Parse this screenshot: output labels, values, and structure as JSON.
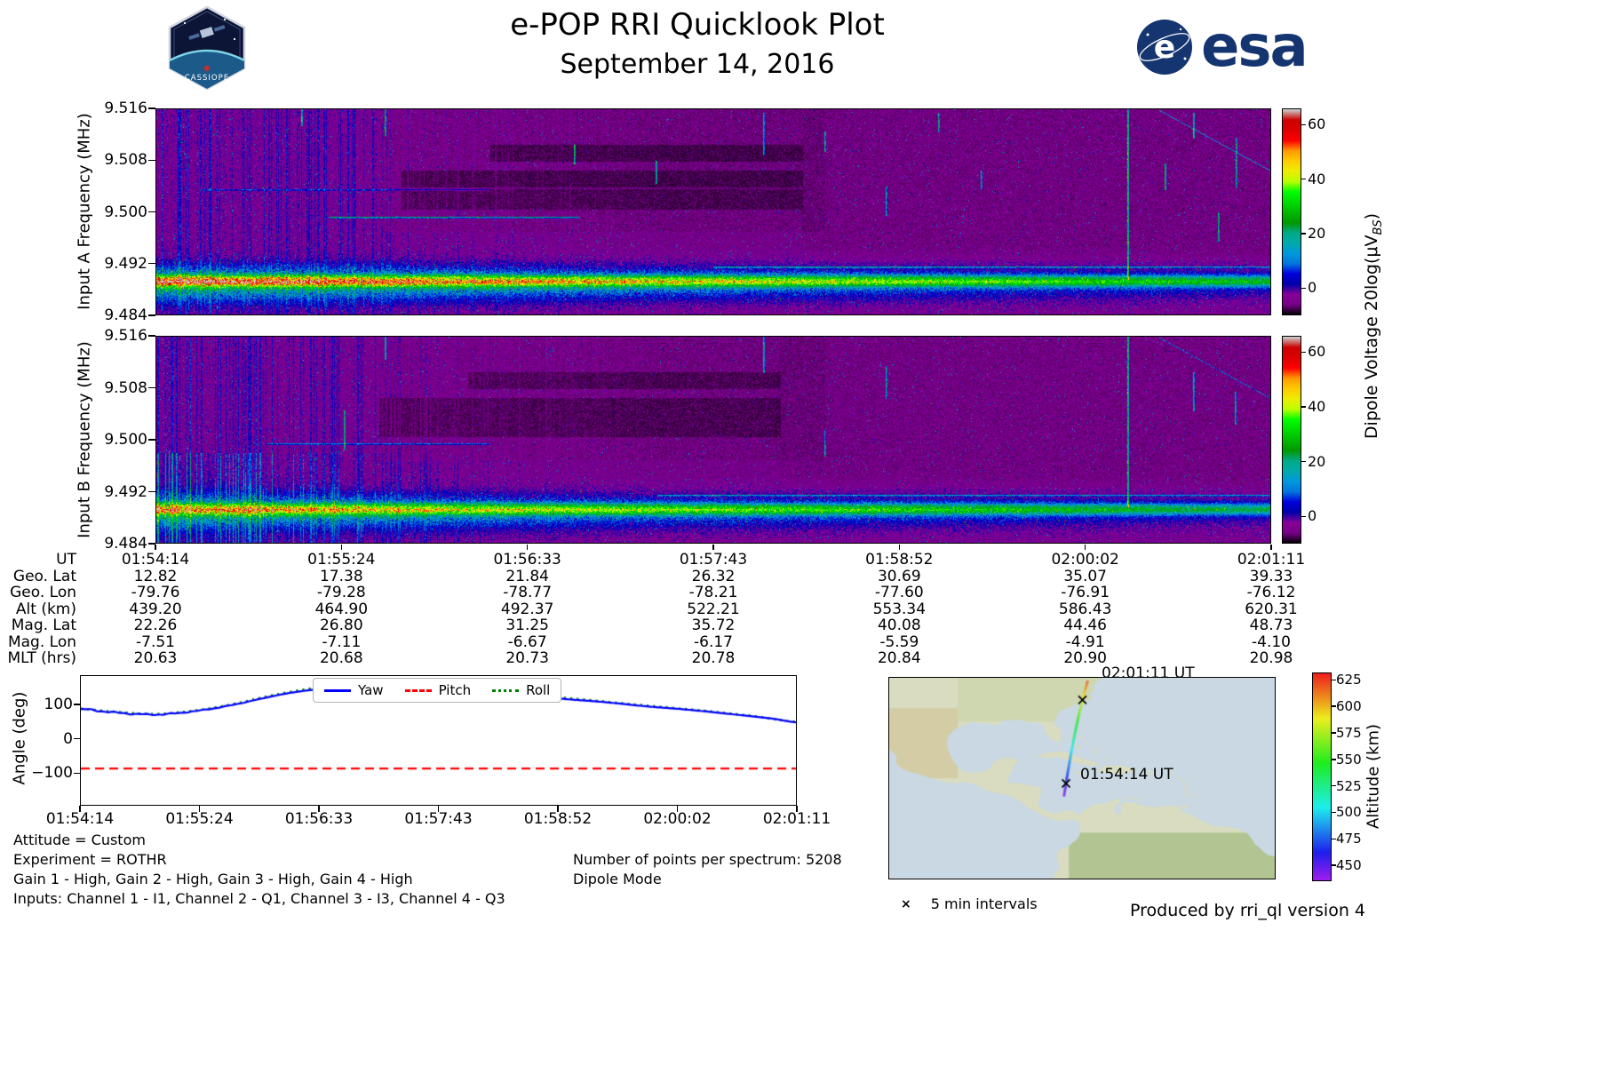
{
  "header": {
    "title": "e-POP RRI Quicklook Plot",
    "date": "September 14, 2016",
    "patch_text": "CASSIOPE",
    "esa_text": "esa"
  },
  "palette": {
    "esa_blue": "#14356f",
    "ocean": "#c9d8e2",
    "land": "#d9dcc0"
  },
  "freq_yticks": [
    "9.516",
    "9.508",
    "9.500",
    "9.492",
    "9.484"
  ],
  "spectrogram_a": {
    "ylabel": "Input A Frequency (MHz)"
  },
  "spectrogram_b": {
    "ylabel": "Input B Frequency (MHz)"
  },
  "colorbar_voltage": {
    "label_pre": "Dipole Voltage 20log(μV",
    "label_sub": "BS",
    "label_post": ")",
    "ticks": [
      0,
      20,
      40,
      60
    ],
    "range": [
      -10,
      66
    ]
  },
  "ephemeris": {
    "rows": [
      {
        "label": "UT",
        "values": [
          "01:54:14",
          "01:55:24",
          "01:56:33",
          "01:57:43",
          "01:58:52",
          "02:00:02",
          "02:01:11"
        ]
      },
      {
        "label": "Geo. Lat",
        "values": [
          "12.82",
          "17.38",
          "21.84",
          "26.32",
          "30.69",
          "35.07",
          "39.33"
        ]
      },
      {
        "label": "Geo. Lon",
        "values": [
          "-79.76",
          "-79.28",
          "-78.77",
          "-78.21",
          "-77.60",
          "-76.91",
          "-76.12"
        ]
      },
      {
        "label": "Alt (km)",
        "values": [
          "439.20",
          "464.90",
          "492.37",
          "522.21",
          "553.34",
          "586.43",
          "620.31"
        ]
      },
      {
        "label": "Mag. Lat",
        "values": [
          "22.26",
          "26.80",
          "31.25",
          "35.72",
          "40.08",
          "44.46",
          "48.73"
        ]
      },
      {
        "label": "Mag. Lon",
        "values": [
          "-7.51",
          "-7.11",
          "-6.67",
          "-6.17",
          "-5.59",
          "-4.91",
          "-4.10"
        ]
      },
      {
        "label": "MLT (hrs)",
        "values": [
          "20.63",
          "20.68",
          "20.73",
          "20.78",
          "20.84",
          "20.90",
          "20.98"
        ]
      }
    ]
  },
  "angle_plot": {
    "ylabel": "Angle (deg)",
    "ytick_labels": [
      "100",
      "0",
      "−100"
    ],
    "ytick_values": [
      100,
      0,
      -100
    ],
    "xticks": [
      "01:54:14",
      "01:55:24",
      "01:56:33",
      "01:57:43",
      "01:58:52",
      "02:00:02",
      "02:01:11"
    ],
    "legend_labels": [
      "Yaw",
      "Pitch",
      "Roll"
    ]
  },
  "map": {
    "start_label": "01:54:14 UT",
    "end_label": "02:01:11 UT",
    "legend_marker": "×",
    "legend_text": "5 min intervals",
    "colorbar": {
      "label": "Altitude (km)",
      "ticks": [
        625,
        600,
        575,
        550,
        525,
        500,
        475,
        450
      ],
      "range": [
        435,
        632
      ]
    }
  },
  "footer": {
    "line1": "Attitude = Custom",
    "line2": "Experiment = ROTHR",
    "line3": "Gain 1 - High, Gain 2 - High, Gain 3 - High, Gain 4 - High",
    "line4": "Inputs: Channel 1 - I1, Channel 2 - Q1, Channel 3 - I3, Channel 4 - Q3",
    "points_line": "Number of points per spectrum: 5208",
    "mode_line": "Dipole Mode",
    "produced": "Produced by rri_ql version 4"
  },
  "chart_data": [
    {
      "type": "heatmap",
      "title": "Input A spectrogram",
      "ylabel": "Input A Frequency (MHz)",
      "ylim": [
        9.484,
        9.516
      ],
      "yticks": [
        9.516,
        9.508,
        9.5,
        9.492,
        9.484
      ],
      "x_time_ticks": [
        "01:54:14",
        "01:55:24",
        "01:56:33",
        "01:57:43",
        "01:58:52",
        "02:00:02",
        "02:01:11"
      ],
      "colorbar": {
        "label": "Dipole Voltage 20log(μV_BS)",
        "ticks": [
          0,
          20,
          40,
          60
        ],
        "range": [
          -10,
          66
        ],
        "colormap": "nipy_spectral"
      },
      "features": {
        "carrier_band_mhz": 9.489,
        "band_level_left_db": 45,
        "band_level_right_db": 18,
        "background": "dark blue noise, vertical interference streaks, strongest signal at start of pass"
      }
    },
    {
      "type": "heatmap",
      "title": "Input B spectrogram",
      "ylabel": "Input B Frequency (MHz)",
      "ylim": [
        9.484,
        9.516
      ],
      "yticks": [
        9.516,
        9.508,
        9.5,
        9.492,
        9.484
      ],
      "x_time_ticks": [
        "01:54:14",
        "01:55:24",
        "01:56:33",
        "01:57:43",
        "01:58:52",
        "02:00:02",
        "02:01:11"
      ],
      "colorbar": {
        "label": "Dipole Voltage 20log(μV_BS)",
        "ticks": [
          0,
          20,
          40,
          60
        ],
        "range": [
          -10,
          66
        ],
        "colormap": "nipy_spectral"
      },
      "features": {
        "carrier_band_mhz": 9.489,
        "band_level_left_db": 35,
        "band_level_right_db": 15,
        "background": "dark blue noise, dimmer than Input A"
      }
    },
    {
      "type": "line",
      "title": "Spacecraft attitude angles",
      "ylabel": "Angle (deg)",
      "ylim": [
        -195,
        185
      ],
      "yticks": [
        -100,
        0,
        100
      ],
      "x_time_ticks": [
        "01:54:14",
        "01:55:24",
        "01:56:33",
        "01:57:43",
        "01:58:52",
        "02:00:02",
        "02:01:11"
      ],
      "legend_position": "upper center",
      "series": [
        {
          "name": "Yaw",
          "color": "#0000ff",
          "style": "solid",
          "points": [
            [
              0,
              87
            ],
            [
              0.03,
              81
            ],
            [
              0.05,
              77
            ],
            [
              0.08,
              73
            ],
            [
              0.105,
              71
            ],
            [
              0.13,
              74
            ],
            [
              0.155,
              80
            ],
            [
              0.18,
              88
            ],
            [
              0.21,
              99
            ],
            [
              0.24,
              112
            ],
            [
              0.27,
              126
            ],
            [
              0.3,
              138
            ],
            [
              0.33,
              146
            ],
            [
              0.36,
              151
            ],
            [
              0.4,
              153
            ],
            [
              0.44,
              151
            ],
            [
              0.48,
              147
            ],
            [
              0.53,
              141
            ],
            [
              0.58,
              134
            ],
            [
              0.63,
              126
            ],
            [
              0.68,
              117
            ],
            [
              0.73,
              108
            ],
            [
              0.78,
              98
            ],
            [
              0.83,
              89
            ],
            [
              0.87,
              81
            ],
            [
              0.91,
              73
            ],
            [
              0.94,
              66
            ],
            [
              0.97,
              58
            ],
            [
              1,
              48
            ]
          ]
        },
        {
          "name": "Pitch",
          "color": "#ff0000",
          "style": "dashed",
          "points": [
            [
              0,
              -88
            ],
            [
              1,
              -88
            ]
          ]
        },
        {
          "name": "Roll",
          "color": "#008000",
          "style": "dotted",
          "points": [
            [
              0,
              88
            ],
            [
              0.05,
              79
            ],
            [
              0.105,
              73
            ],
            [
              0.155,
              82
            ],
            [
              0.21,
              101
            ],
            [
              0.27,
              129
            ],
            [
              0.33,
              150
            ],
            [
              0.38,
              158
            ],
            [
              0.44,
              157
            ],
            [
              0.5,
              151
            ],
            [
              0.58,
              138
            ],
            [
              0.68,
              120
            ],
            [
              0.78,
              100
            ],
            [
              0.87,
              83
            ],
            [
              0.94,
              67
            ],
            [
              1,
              50
            ]
          ]
        }
      ]
    },
    {
      "type": "scatter",
      "title": "Ground track colored by altitude",
      "times": [
        "01:54:14",
        "01:55:24",
        "01:56:33",
        "01:57:43",
        "01:58:52",
        "02:00:02",
        "02:01:11"
      ],
      "lat": [
        12.82,
        17.38,
        21.84,
        26.32,
        30.69,
        35.07,
        39.33
      ],
      "lon": [
        -79.76,
        -79.28,
        -78.77,
        -78.21,
        -77.6,
        -76.91,
        -76.12
      ],
      "alt_km": [
        439.2,
        464.9,
        492.37,
        522.21,
        553.34,
        586.43,
        620.31
      ],
      "marker_interval": "5 min",
      "colorbar": {
        "label": "Altitude (km)",
        "ticks": [
          450,
          475,
          500,
          525,
          550,
          575,
          600,
          625
        ],
        "range": [
          435,
          632
        ],
        "colormap": "rainbow"
      }
    }
  ]
}
